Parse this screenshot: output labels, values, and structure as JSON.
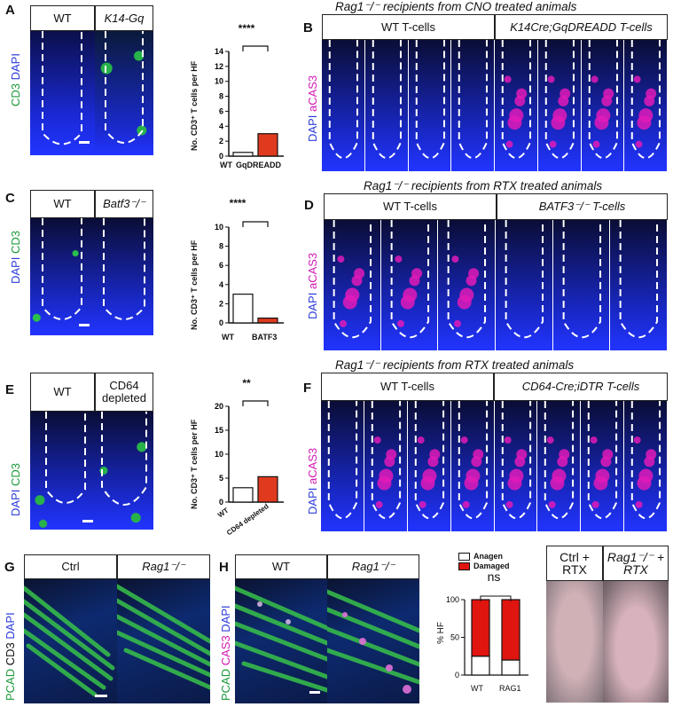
{
  "panels": {
    "A": {
      "letter": "A",
      "headers": [
        "WT",
        "K14-Gq"
      ],
      "channel_labels": [
        {
          "text": "CD3 ",
          "color": "#1a9a3a"
        },
        {
          "text": "DAPI",
          "color": "#2b3bd6"
        }
      ]
    },
    "A_chart": {
      "ylabel": "No. CD3⁺ T cells per HF",
      "significance": "****",
      "yticks": [
        "0",
        "2",
        "4",
        "6",
        "8",
        "10",
        "12",
        "14"
      ]
    },
    "B": {
      "letter": "B",
      "title": "Rag1⁻/⁻ recipients from CNO treated animals",
      "headers": [
        "WT T-cells",
        "K14Cre;GqDREADD T-cells"
      ],
      "channel_labels": [
        {
          "text": "DAPI ",
          "color": "#2b3bd6"
        },
        {
          "text": "aCAS3",
          "color": "#d21ab4"
        }
      ]
    },
    "C": {
      "letter": "C",
      "headers": [
        "WT",
        "Batf3⁻/⁻"
      ],
      "channel_labels": [
        {
          "text": "DAPI ",
          "color": "#2b3bd6"
        },
        {
          "text": "CD3",
          "color": "#1a9a3a"
        }
      ]
    },
    "C_chart": {
      "ylabel": "No. CD3⁺ T cells per HF",
      "significance": "****",
      "yticks": [
        "0",
        "2",
        "4",
        "6",
        "8",
        "10"
      ]
    },
    "D": {
      "letter": "D",
      "title": "Rag1⁻/⁻ recipients from RTX treated animals",
      "headers": [
        "WT T-cells",
        "BATF3⁻/⁻ T-cells"
      ],
      "channel_labels": [
        {
          "text": "DAPI ",
          "color": "#2b3bd6"
        },
        {
          "text": "aCAS3",
          "color": "#d21ab4"
        }
      ]
    },
    "E": {
      "letter": "E",
      "headers": [
        "WT",
        "CD64 depleted"
      ],
      "channel_labels": [
        {
          "text": "DAPI ",
          "color": "#2b3bd6"
        },
        {
          "text": "CD3",
          "color": "#1a9a3a"
        }
      ]
    },
    "E_chart": {
      "ylabel": "No. CD3⁺ T cells per HF",
      "significance": "**",
      "yticks": [
        "0",
        "5",
        "10",
        "15",
        "20"
      ]
    },
    "F": {
      "letter": "F",
      "title": "Rag1⁻/⁻ recipients from RTX treated animals",
      "headers": [
        "WT T-cells",
        "CD64-Cre;iDTR T-cells"
      ],
      "channel_labels": [
        {
          "text": "DAPI ",
          "color": "#2b3bd6"
        },
        {
          "text": "aCAS3",
          "color": "#d21ab4"
        }
      ]
    },
    "G": {
      "letter": "G",
      "headers": [
        "Ctrl",
        "Rag1⁻/⁻"
      ],
      "channel_labels": [
        {
          "text": "PCAD ",
          "color": "#1a9a3a"
        },
        {
          "text": "CD3 ",
          "color": "#111111"
        },
        {
          "text": "DAPI",
          "color": "#2b3bd6"
        }
      ]
    },
    "H": {
      "letter": "H",
      "headers": [
        "WT",
        "Rag1⁻/⁻"
      ],
      "channel_labels": [
        {
          "text": "PCAD ",
          "color": "#1a9a3a"
        },
        {
          "text": "CAS3 ",
          "color": "#d21ab4"
        },
        {
          "text": "DAPI",
          "color": "#2b3bd6"
        }
      ]
    },
    "H_chart": {
      "ylabel": "% HF",
      "significance": "ns",
      "legend": [
        "Anagen",
        "Damaged"
      ],
      "yticks": [
        "0",
        "50",
        "100"
      ]
    },
    "photos": {
      "labels": [
        "Ctrl + RTX",
        "Rag1⁻/⁻ + RTX"
      ]
    }
  },
  "chart_data": [
    {
      "type": "bar",
      "panel": "A",
      "categories": [
        "WT",
        "GqDREADD"
      ],
      "values": [
        0.5,
        3.0
      ],
      "ylim": [
        0,
        14
      ],
      "colors": [
        "#ffffff",
        "#e03a1e"
      ]
    },
    {
      "type": "bar",
      "panel": "C",
      "categories": [
        "WT",
        "BATF3"
      ],
      "values": [
        3.0,
        0.5
      ],
      "ylim": [
        0,
        10
      ],
      "colors": [
        "#ffffff",
        "#e03a1e"
      ]
    },
    {
      "type": "bar",
      "panel": "E",
      "categories": [
        "WT",
        "CD64 depleted"
      ],
      "values": [
        3.0,
        5.3
      ],
      "ylim": [
        0,
        20
      ],
      "colors": [
        "#ffffff",
        "#e03a1e"
      ]
    },
    {
      "type": "bar",
      "panel": "H",
      "categories": [
        "WT",
        "RAG1"
      ],
      "series": [
        {
          "name": "Anagen",
          "values": [
            25,
            20
          ]
        },
        {
          "name": "Damaged",
          "values": [
            75,
            80
          ]
        }
      ],
      "ylim": [
        0,
        100
      ],
      "stacked": true,
      "colors": [
        "#ffffff",
        "#e0150f"
      ]
    }
  ]
}
